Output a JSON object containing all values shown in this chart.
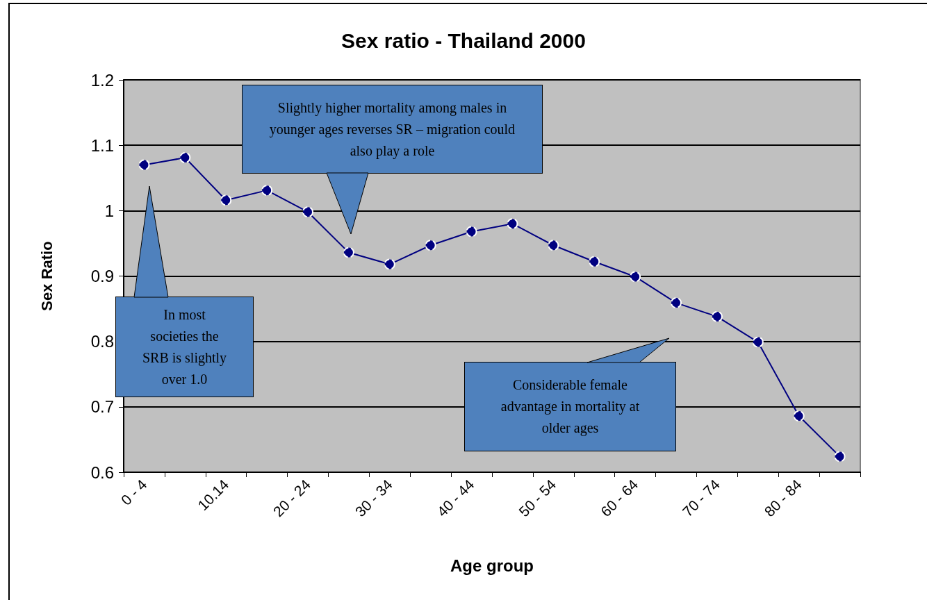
{
  "chart_data": {
    "type": "line",
    "title": "Sex ratio - Thailand 2000",
    "xlabel": "Age group",
    "ylabel": "Sex Ratio",
    "categories": [
      "0 - 4",
      null,
      "10.14",
      null,
      "20 - 24",
      null,
      "30 - 34",
      null,
      "40 - 44",
      null,
      "50 - 54",
      null,
      "60 - 64",
      null,
      "70 - 74",
      null,
      "80 - 84",
      null
    ],
    "series": [
      {
        "color": "#000080",
        "values": [
          1.07,
          1.081,
          1.016,
          1.031,
          0.998,
          0.936,
          0.918,
          0.947,
          0.968,
          0.98,
          0.947,
          0.922,
          0.899,
          0.859,
          0.838,
          0.799,
          0.686,
          0.624
        ]
      }
    ],
    "ylim": [
      0.6,
      1.2
    ],
    "yticks": [
      0.6,
      0.7,
      0.8,
      0.9,
      1,
      1.1,
      1.2
    ],
    "grid": "y",
    "marker": "circle",
    "line_style": "solid",
    "annotations": [
      "In most societies the SRB is slightly over 1.0",
      "Slightly higher mortality among males in younger ages reverses SR – migration could also play a role",
      "Considerable female advantage in mortality at older ages"
    ]
  }
}
